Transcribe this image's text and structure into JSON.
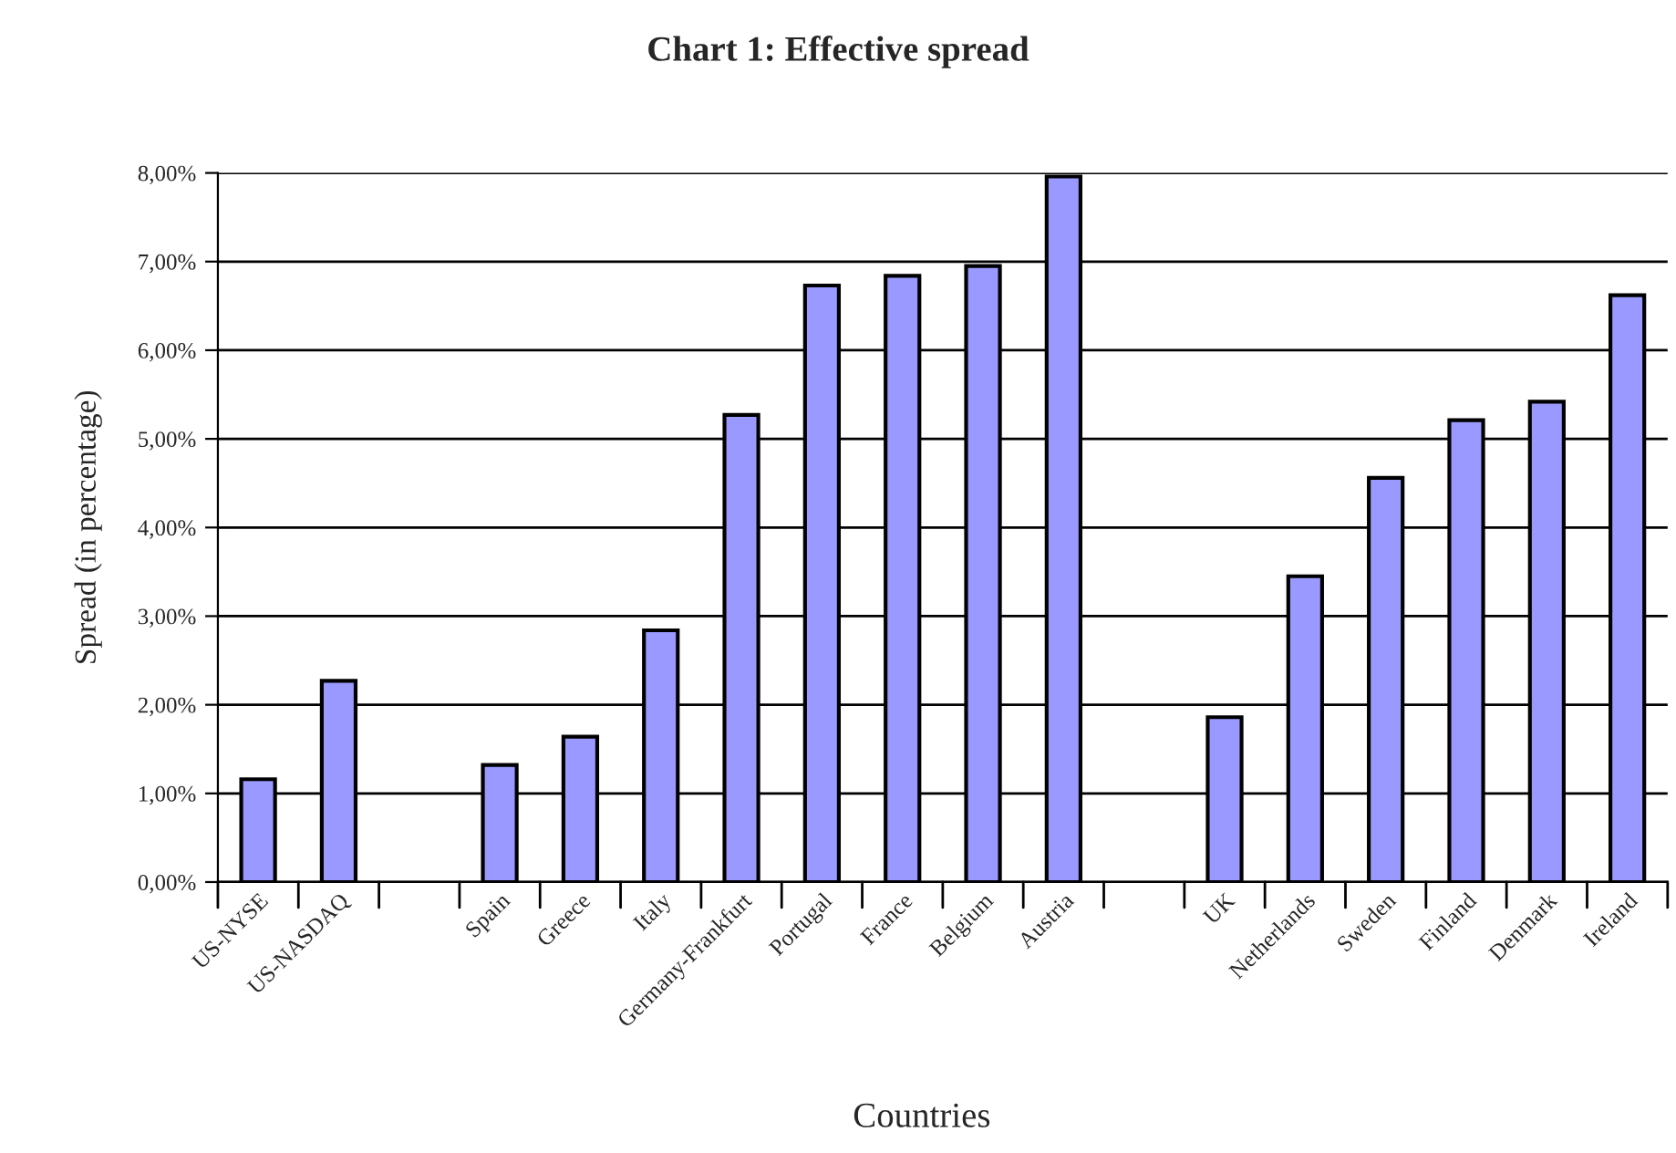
{
  "chart_data": {
    "type": "bar",
    "title": "Chart 1: Effective spread",
    "xlabel": "Countries",
    "ylabel": "Spread (in percentage)",
    "categories": [
      "US-NYSE",
      "US-NASDAQ",
      null,
      "Spain",
      "Greece",
      "Italy",
      "Germany-Frankfurt",
      "Portugal",
      "France",
      "Belgium",
      "Austria",
      null,
      "UK",
      "Netherlands",
      "Sweden",
      "Finland",
      "Denmark",
      "Ireland"
    ],
    "values": [
      1.16,
      2.27,
      null,
      1.32,
      1.64,
      2.84,
      5.27,
      6.73,
      6.84,
      6.95,
      7.96,
      null,
      1.86,
      3.45,
      4.56,
      5.21,
      5.42,
      6.62
    ],
    "color": "#9999ff",
    "ylim": [
      0,
      8
    ],
    "yticks": [
      {
        "value": 0,
        "label": "0,00%"
      },
      {
        "value": 1,
        "label": "1,00%"
      },
      {
        "value": 2,
        "label": "2,00%"
      },
      {
        "value": 3,
        "label": "3,00%"
      },
      {
        "value": 4,
        "label": "4,00%"
      },
      {
        "value": 5,
        "label": "5,00%"
      },
      {
        "value": 6,
        "label": "6,00%"
      },
      {
        "value": 7,
        "label": "7,00%"
      },
      {
        "value": 8,
        "label": "8,00%"
      }
    ],
    "grid": "y",
    "legend": false
  }
}
